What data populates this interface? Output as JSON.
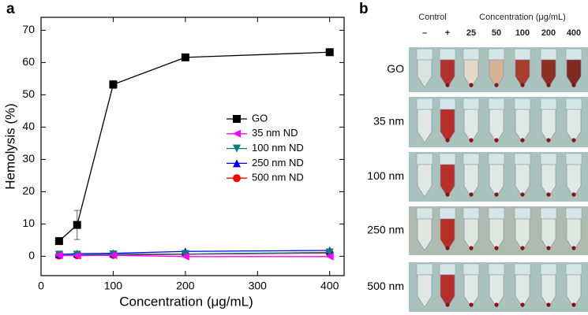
{
  "panel_labels": [
    "a",
    "b"
  ],
  "chart_data": {
    "type": "line",
    "x_label": "Concentration (μg/mL)",
    "y_label": "Hemolysis (%)",
    "x": [
      25,
      50,
      100,
      200,
      400
    ],
    "series": [
      {
        "name": "GO",
        "color": "#000000",
        "marker": "square",
        "values": [
          4.7,
          9.7,
          53.2,
          61.6,
          63.2
        ],
        "errors": [
          0.3,
          4.5,
          1.2,
          0.5,
          0.5
        ]
      },
      {
        "name": "35 nm ND",
        "color": "#ff00ff",
        "marker": "triangle-left",
        "values": [
          0.3,
          0.2,
          0.3,
          -0.1,
          -0.1
        ]
      },
      {
        "name": "100 nm ND",
        "color": "#008080",
        "marker": "triangle-down",
        "values": [
          0.5,
          0.5,
          0.6,
          0.7,
          1.2
        ]
      },
      {
        "name": "250 nm ND",
        "color": "#0000ff",
        "marker": "triangle-up",
        "values": [
          0.6,
          0.8,
          0.9,
          1.5,
          1.8
        ]
      },
      {
        "name": "500 nm ND",
        "color": "#ff0000",
        "marker": "circle",
        "values": [
          0.2,
          0.3,
          0.4,
          0.6,
          1.0
        ]
      }
    ],
    "xlim": [
      0,
      420
    ],
    "xticks": [
      0,
      100,
      200,
      300,
      400
    ],
    "ylim": [
      -6,
      74
    ],
    "yticks": [
      0,
      10,
      20,
      30,
      40,
      50,
      60,
      70
    ],
    "legend": "right"
  },
  "photo_panel": {
    "group_labels": [
      "Control",
      "Concentration (μg/mL)"
    ],
    "columns": [
      "–",
      "+",
      "25",
      "50",
      "100",
      "200",
      "400"
    ],
    "rows": [
      "GO",
      "35 nm",
      "100 nm",
      "250 nm",
      "500 nm"
    ]
  }
}
